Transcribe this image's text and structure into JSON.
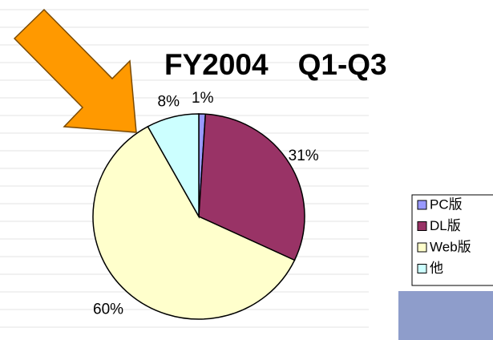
{
  "chart_data": {
    "type": "pie",
    "title": "FY2004　Q1-Q3",
    "categories": [
      "PC版",
      "DL版",
      "Web版",
      "他"
    ],
    "values": [
      1,
      31,
      60,
      8
    ],
    "value_labels": [
      "1%",
      "31%",
      "60%",
      "8%"
    ],
    "colors": [
      "#9999ff",
      "#993366",
      "#ffffcc",
      "#ccffff"
    ],
    "legend": "right"
  }
}
